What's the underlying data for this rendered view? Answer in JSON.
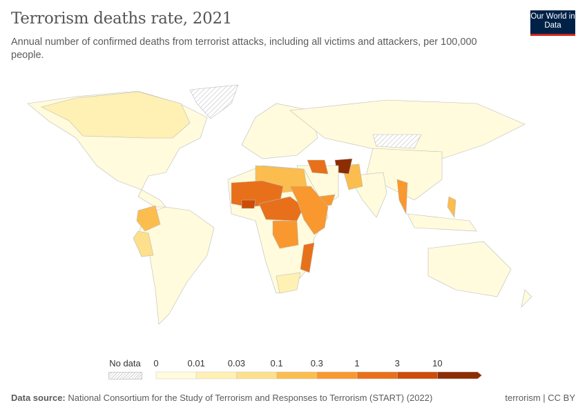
{
  "header": {
    "title": "Terrorism deaths rate, 2021",
    "subtitle": "Annual number of confirmed deaths from terrorist attacks, including all victims and attackers, per 100,000 people.",
    "logo": "Our World in Data"
  },
  "chart_data": {
    "type": "choropleth",
    "title": "Terrorism deaths rate, 2021",
    "legend": {
      "no_data_label": "No data",
      "tick_labels": [
        "0",
        "0.01",
        "0.03",
        "0.1",
        "0.3",
        "1",
        "3",
        "10"
      ],
      "bins": [
        {
          "range": [
            0,
            0.01
          ],
          "color": "#fffbdc"
        },
        {
          "range": [
            0.01,
            0.03
          ],
          "color": "#fff0b4"
        },
        {
          "range": [
            0.03,
            0.1
          ],
          "color": "#fddf8c"
        },
        {
          "range": [
            0.1,
            0.3
          ],
          "color": "#fbbd4e"
        },
        {
          "range": [
            0.3,
            1
          ],
          "color": "#f9982e"
        },
        {
          "range": [
            1,
            3
          ],
          "color": "#e8701a"
        },
        {
          "range": [
            3,
            10
          ],
          "color": "#cc4c08"
        },
        {
          "range": [
            10,
            null
          ],
          "color": "#8c2d04"
        }
      ],
      "no_data_color": "#e8e8e8"
    },
    "regions": [
      {
        "name": "Afghanistan",
        "bin": ">10"
      },
      {
        "name": "Mali",
        "bin": "1-3"
      },
      {
        "name": "Burkina Faso",
        "bin": "3-10"
      },
      {
        "name": "Niger",
        "bin": "1-3"
      },
      {
        "name": "Nigeria",
        "bin": "1-3"
      },
      {
        "name": "Somalia",
        "bin": "1-3"
      },
      {
        "name": "Mozambique",
        "bin": "1-3"
      },
      {
        "name": "Syria",
        "bin": "1-3"
      },
      {
        "name": "Iraq",
        "bin": "0.3-1"
      },
      {
        "name": "Myanmar",
        "bin": "0.3-1"
      },
      {
        "name": "Yemen",
        "bin": "0.3-1"
      },
      {
        "name": "Central African Republic",
        "bin": "1-3"
      },
      {
        "name": "DR Congo",
        "bin": "0.3-1"
      },
      {
        "name": "Cameroon",
        "bin": "0.3-1"
      },
      {
        "name": "Chad",
        "bin": "0.3-1"
      },
      {
        "name": "Ethiopia",
        "bin": "0.3-1"
      },
      {
        "name": "South Sudan",
        "bin": "0.3-1"
      },
      {
        "name": "Colombia",
        "bin": "0.1-0.3"
      },
      {
        "name": "Peru",
        "bin": "0.03-0.1"
      },
      {
        "name": "Pakistan",
        "bin": "0.1-0.3"
      },
      {
        "name": "Libya",
        "bin": "0.1-0.3"
      },
      {
        "name": "Sudan",
        "bin": "0.1-0.3"
      },
      {
        "name": "Algeria",
        "bin": "0.03-0.1"
      },
      {
        "name": "Philippines",
        "bin": "0.1-0.3"
      },
      {
        "name": "Kenya",
        "bin": "0.03-0.1"
      },
      {
        "name": "Canada",
        "bin": "0.01-0.03"
      },
      {
        "name": "South Africa",
        "bin": "0.01-0.03"
      },
      {
        "name": "Greenland",
        "bin": "no data"
      },
      {
        "name": "Mongolia",
        "bin": "no data"
      }
    ]
  },
  "footer": {
    "source_label": "Data source:",
    "source": "National Consortium for the Study of Terrorism and Responses to Terrorism (START) (2022)",
    "license": "terrorism | CC BY"
  }
}
